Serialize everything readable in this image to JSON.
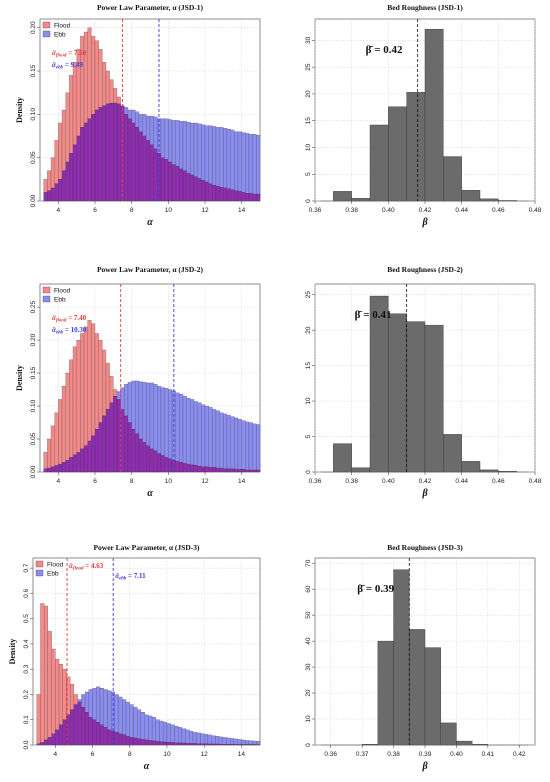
{
  "colors": {
    "flood": "#f28a8a",
    "ebb": "#8a8cf0",
    "overlap": "#8e2db0",
    "flood_line": "#e23b3b",
    "ebb_line": "#3a3ae0",
    "beta_bar": "#6b6b6b",
    "grid": "#cfcfcf"
  },
  "chart_data": [
    {
      "type": "bar",
      "kind": "alpha",
      "title": "Power Law Parameter, α (JSD-1)",
      "xlabel": "α",
      "ylabel": "Density",
      "xlim": [
        3,
        15
      ],
      "ylim": [
        0,
        0.21
      ],
      "xticks": [
        4,
        6,
        8,
        10,
        12,
        14
      ],
      "yticks": [
        0.0,
        0.05,
        0.1,
        0.15,
        0.2
      ],
      "ytick_labels": [
        "0.00",
        "0.05",
        "0.10",
        "0.15",
        "0.20"
      ],
      "legend": {
        "position": "top-left",
        "entries": [
          "Flood",
          "Ebb"
        ]
      },
      "bin_width": 0.2,
      "bin_start": 3.2,
      "series": [
        {
          "name": "Flood",
          "values": [
            0.025,
            0.035,
            0.05,
            0.07,
            0.09,
            0.105,
            0.125,
            0.145,
            0.16,
            0.175,
            0.19,
            0.195,
            0.2,
            0.19,
            0.185,
            0.175,
            0.16,
            0.15,
            0.14,
            0.13,
            0.12,
            0.11,
            0.1,
            0.095,
            0.09,
            0.085,
            0.08,
            0.075,
            0.07,
            0.065,
            0.06,
            0.055,
            0.05,
            0.048,
            0.045,
            0.042,
            0.04,
            0.037,
            0.035,
            0.032,
            0.03,
            0.028,
            0.026,
            0.024,
            0.022,
            0.02,
            0.018,
            0.017,
            0.016,
            0.015,
            0.014,
            0.013,
            0.012,
            0.011,
            0.01,
            0.009,
            0.009,
            0.008,
            0.008
          ]
        },
        {
          "name": "Ebb",
          "values": [
            0.01,
            0.012,
            0.015,
            0.02,
            0.025,
            0.035,
            0.045,
            0.055,
            0.065,
            0.075,
            0.085,
            0.09,
            0.095,
            0.1,
            0.105,
            0.108,
            0.11,
            0.112,
            0.113,
            0.113,
            0.112,
            0.11,
            0.108,
            0.105,
            0.105,
            0.103,
            0.1,
            0.1,
            0.098,
            0.098,
            0.097,
            0.095,
            0.095,
            0.095,
            0.094,
            0.093,
            0.093,
            0.092,
            0.092,
            0.091,
            0.09,
            0.09,
            0.089,
            0.088,
            0.087,
            0.087,
            0.086,
            0.085,
            0.085,
            0.084,
            0.083,
            0.082,
            0.08,
            0.08,
            0.079,
            0.078,
            0.077,
            0.077,
            0.076
          ]
        }
      ],
      "vlines": [
        {
          "series": "Flood",
          "x": 7.5,
          "label": "ᾱ",
          "sub": "flood",
          "value_text": " = 7.50"
        },
        {
          "series": "Ebb",
          "x": 9.49,
          "label": "ᾱ",
          "sub": "ebb",
          "value_text": " = 9.49"
        }
      ]
    },
    {
      "type": "bar",
      "kind": "beta",
      "title": "Bed Roughness (JSD-1)",
      "xlabel": "β",
      "ylabel": "",
      "xlim": [
        0.36,
        0.48
      ],
      "ylim": [
        0,
        34
      ],
      "xticks": [
        0.36,
        0.38,
        0.4,
        0.42,
        0.44,
        0.46,
        0.48
      ],
      "xtick_labels": [
        "0.36",
        "0.38",
        "0.40",
        "0.42",
        "0.44",
        "0.46",
        "0.48"
      ],
      "yticks": [
        0,
        5,
        10,
        15,
        20,
        25,
        30
      ],
      "bins": [
        0.37,
        0.38,
        0.39,
        0.4,
        0.41,
        0.42,
        0.43,
        0.44,
        0.45,
        0.46
      ],
      "bin_width": 0.01,
      "values": [
        1.8,
        0.5,
        14.2,
        17.6,
        20.3,
        32.1,
        8.3,
        2.0,
        0.4,
        0.1
      ],
      "vline": 0.416,
      "annotation": "β̄ = 0.42"
    },
    {
      "type": "bar",
      "kind": "alpha",
      "title": "Power Law Parameter, α (JSD-2)",
      "xlabel": "α",
      "ylabel": "Density",
      "xlim": [
        3,
        15
      ],
      "ylim": [
        0,
        0.285
      ],
      "xticks": [
        4,
        6,
        8,
        10,
        12,
        14
      ],
      "yticks": [
        0.0,
        0.05,
        0.1,
        0.15,
        0.2,
        0.25
      ],
      "ytick_labels": [
        "0.00",
        "0.05",
        "0.10",
        "0.15",
        "0.20",
        "0.25"
      ],
      "legend": {
        "position": "top-left",
        "entries": [
          "Flood",
          "Ebb"
        ]
      },
      "bin_width": 0.2,
      "bin_start": 3.2,
      "series": [
        {
          "name": "Flood",
          "values": [
            0.03,
            0.05,
            0.07,
            0.09,
            0.11,
            0.13,
            0.15,
            0.17,
            0.19,
            0.2,
            0.21,
            0.22,
            0.23,
            0.225,
            0.21,
            0.2,
            0.185,
            0.165,
            0.145,
            0.125,
            0.11,
            0.095,
            0.085,
            0.075,
            0.065,
            0.058,
            0.05,
            0.045,
            0.04,
            0.035,
            0.032,
            0.028,
            0.025,
            0.022,
            0.02,
            0.018,
            0.016,
            0.015,
            0.013,
            0.012,
            0.011,
            0.01,
            0.009,
            0.008,
            0.008,
            0.007,
            0.007,
            0.006,
            0.006,
            0.005,
            0.005,
            0.005,
            0.004,
            0.004,
            0.004,
            0.003,
            0.003,
            0.003,
            0.003
          ]
        },
        {
          "name": "Ebb",
          "values": [
            0.005,
            0.006,
            0.008,
            0.01,
            0.012,
            0.015,
            0.018,
            0.022,
            0.026,
            0.03,
            0.035,
            0.04,
            0.047,
            0.055,
            0.065,
            0.075,
            0.085,
            0.095,
            0.105,
            0.115,
            0.122,
            0.128,
            0.133,
            0.136,
            0.138,
            0.138,
            0.137,
            0.136,
            0.135,
            0.135,
            0.133,
            0.13,
            0.128,
            0.127,
            0.125,
            0.123,
            0.12,
            0.118,
            0.115,
            0.112,
            0.11,
            0.107,
            0.105,
            0.102,
            0.1,
            0.098,
            0.095,
            0.093,
            0.09,
            0.088,
            0.086,
            0.084,
            0.082,
            0.08,
            0.078,
            0.076,
            0.075,
            0.073,
            0.072
          ]
        }
      ],
      "vlines": [
        {
          "series": "Flood",
          "x": 7.4,
          "label": "ᾱ",
          "sub": "flood",
          "value_text": " = 7.40"
        },
        {
          "series": "Ebb",
          "x": 10.3,
          "label": "ᾱ",
          "sub": "ebb",
          "value_text": " = 10.30"
        }
      ]
    },
    {
      "type": "bar",
      "kind": "beta",
      "title": "Bed Roughness (JSD-2)",
      "xlabel": "β",
      "ylabel": "",
      "xlim": [
        0.36,
        0.48
      ],
      "ylim": [
        0,
        26.5
      ],
      "xticks": [
        0.36,
        0.38,
        0.4,
        0.42,
        0.44,
        0.46,
        0.48
      ],
      "xtick_labels": [
        "0.36",
        "0.38",
        "0.40",
        "0.42",
        "0.44",
        "0.46",
        "0.48"
      ],
      "yticks": [
        0,
        5,
        10,
        15,
        20,
        25
      ],
      "bins": [
        0.37,
        0.38,
        0.39,
        0.4,
        0.41,
        0.42,
        0.43,
        0.44,
        0.45,
        0.46
      ],
      "bin_width": 0.01,
      "values": [
        4.0,
        0.6,
        24.8,
        22.3,
        21.2,
        20.7,
        5.3,
        1.5,
        0.3,
        0.1
      ],
      "vline": 0.41,
      "annotation": "β̄ = 0.41"
    },
    {
      "type": "bar",
      "kind": "alpha",
      "title": "Power Law Parameter, α (JSD-3)",
      "xlabel": "α",
      "ylabel": "Density",
      "xlim": [
        2.8,
        15
      ],
      "ylim": [
        0,
        0.74
      ],
      "xticks": [
        4,
        6,
        8,
        10,
        12,
        14
      ],
      "yticks": [
        0.0,
        0.1,
        0.2,
        0.3,
        0.4,
        0.5,
        0.6,
        0.7
      ],
      "ytick_labels": [
        "0.0",
        "0.1",
        "0.2",
        "0.3",
        "0.4",
        "0.5",
        "0.6",
        "0.7"
      ],
      "legend": {
        "position": "top-left",
        "entries": [
          "Flood",
          "Ebb"
        ]
      },
      "bin_width": 0.2,
      "bin_start": 3.0,
      "series": [
        {
          "name": "Flood",
          "values": [
            0.2,
            0.56,
            0.55,
            0.45,
            0.38,
            0.34,
            0.32,
            0.3,
            0.27,
            0.24,
            0.2,
            0.17,
            0.15,
            0.13,
            0.11,
            0.1,
            0.09,
            0.08,
            0.07,
            0.06,
            0.055,
            0.05,
            0.045,
            0.04,
            0.035,
            0.03,
            0.028,
            0.025,
            0.022,
            0.02,
            0.018,
            0.016,
            0.015,
            0.013,
            0.012,
            0.011,
            0.01,
            0.009,
            0.008,
            0.008,
            0.007,
            0.006,
            0.006,
            0.005,
            0.005,
            0.005,
            0.004,
            0.004,
            0.004,
            0.003,
            0.003,
            0.003,
            0.003,
            0.002,
            0.002,
            0.002,
            0.002,
            0.002,
            0.002,
            0.001
          ]
        },
        {
          "name": "Ebb",
          "values": [
            0.005,
            0.01,
            0.02,
            0.03,
            0.045,
            0.06,
            0.08,
            0.1,
            0.12,
            0.14,
            0.16,
            0.18,
            0.2,
            0.21,
            0.22,
            0.225,
            0.23,
            0.225,
            0.22,
            0.215,
            0.21,
            0.2,
            0.19,
            0.18,
            0.17,
            0.16,
            0.15,
            0.14,
            0.13,
            0.12,
            0.115,
            0.11,
            0.1,
            0.095,
            0.09,
            0.085,
            0.08,
            0.075,
            0.07,
            0.065,
            0.06,
            0.055,
            0.05,
            0.048,
            0.045,
            0.042,
            0.04,
            0.037,
            0.035,
            0.032,
            0.03,
            0.028,
            0.026,
            0.024,
            0.022,
            0.02,
            0.018,
            0.017,
            0.016,
            0.015
          ]
        }
      ],
      "vlines": [
        {
          "series": "Flood",
          "x": 4.63,
          "label": "ᾱ",
          "sub": "flood",
          "value_text": " = 4.63"
        },
        {
          "series": "Ebb",
          "x": 7.11,
          "label": "ᾱ",
          "sub": "ebb",
          "value_text": " = 7.11"
        }
      ]
    },
    {
      "type": "bar",
      "kind": "beta",
      "title": "Bed Roughness (JSD-3)",
      "xlabel": "β",
      "ylabel": "",
      "xlim": [
        0.355,
        0.425
      ],
      "ylim": [
        0,
        72
      ],
      "xticks": [
        0.36,
        0.37,
        0.38,
        0.39,
        0.4,
        0.41,
        0.42
      ],
      "xtick_labels": [
        "0.36",
        "0.37",
        "0.38",
        "0.39",
        "0.40",
        "0.41",
        "0.42"
      ],
      "yticks": [
        0,
        10,
        20,
        30,
        40,
        50,
        60,
        70
      ],
      "bins": [
        0.37,
        0.375,
        0.38,
        0.385,
        0.39,
        0.395,
        0.4,
        0.405
      ],
      "bin_width": 0.005,
      "values": [
        0.3,
        40.0,
        67.5,
        44.5,
        37.5,
        8.5,
        1.5,
        0.3
      ],
      "vline": 0.385,
      "annotation": "β̄ = 0.39"
    }
  ]
}
